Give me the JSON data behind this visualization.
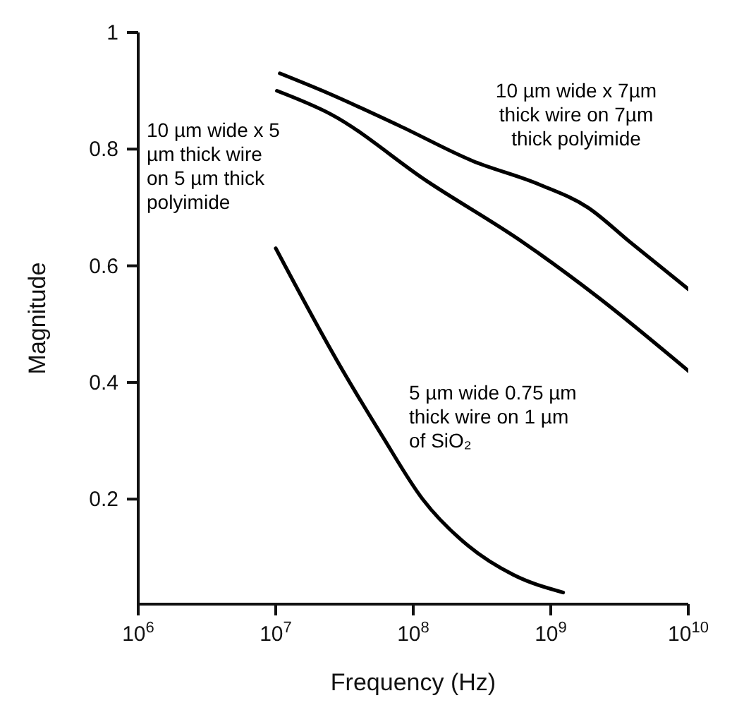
{
  "chart_data": {
    "type": "line",
    "xlabel": "Frequency (Hz)",
    "ylabel": "Magnitude",
    "log": "x",
    "xlim": [
      1000000,
      10000000000
    ],
    "ylim": [
      0.02,
      1
    ],
    "xticks": [
      {
        "value": 1000000,
        "label": "10$^{6}$"
      },
      {
        "value": 10000000,
        "label": "10$^{7}$"
      },
      {
        "value": 100000000,
        "label": "10$^{8}$"
      },
      {
        "value": 1000000000,
        "label": "10$^{9}$"
      },
      {
        "value": 10000000000,
        "label": "10$^{10}$"
      }
    ],
    "yticks": [
      0.2,
      0.4,
      0.6,
      0.8,
      1
    ],
    "marker": "none",
    "line_style": "solid",
    "series": [
      {
        "name": "10 µm wide x 7µm thick wire on 7µm thick polyimide",
        "color": "#000000",
        "x": [
          10700000,
          21900000,
          79400000,
          269000000,
          813000000,
          1860000000,
          3800000000,
          10000000000
        ],
        "values": [
          0.93,
          0.9,
          0.84,
          0.78,
          0.74,
          0.7,
          0.64,
          0.56
        ]
      },
      {
        "name": "10 µm wide x 5 µm thick wire on 5 µm thick polyimide",
        "color": "#000000",
        "x": [
          10200000,
          25100000,
          126000000,
          631000000,
          2240000000,
          10000000000
        ],
        "values": [
          0.9,
          0.86,
          0.745,
          0.64,
          0.545,
          0.42
        ]
      },
      {
        "name": "5 µm wide 0.75 µm thick wire on 1 µm of SiO₂",
        "color": "#000000",
        "x": [
          10000000,
          27500000,
          58900000,
          117000000,
          251000000,
          537000000,
          1230000000
        ],
        "values": [
          0.63,
          0.44,
          0.31,
          0.2,
          0.12,
          0.07,
          0.04
        ]
      }
    ]
  }
}
